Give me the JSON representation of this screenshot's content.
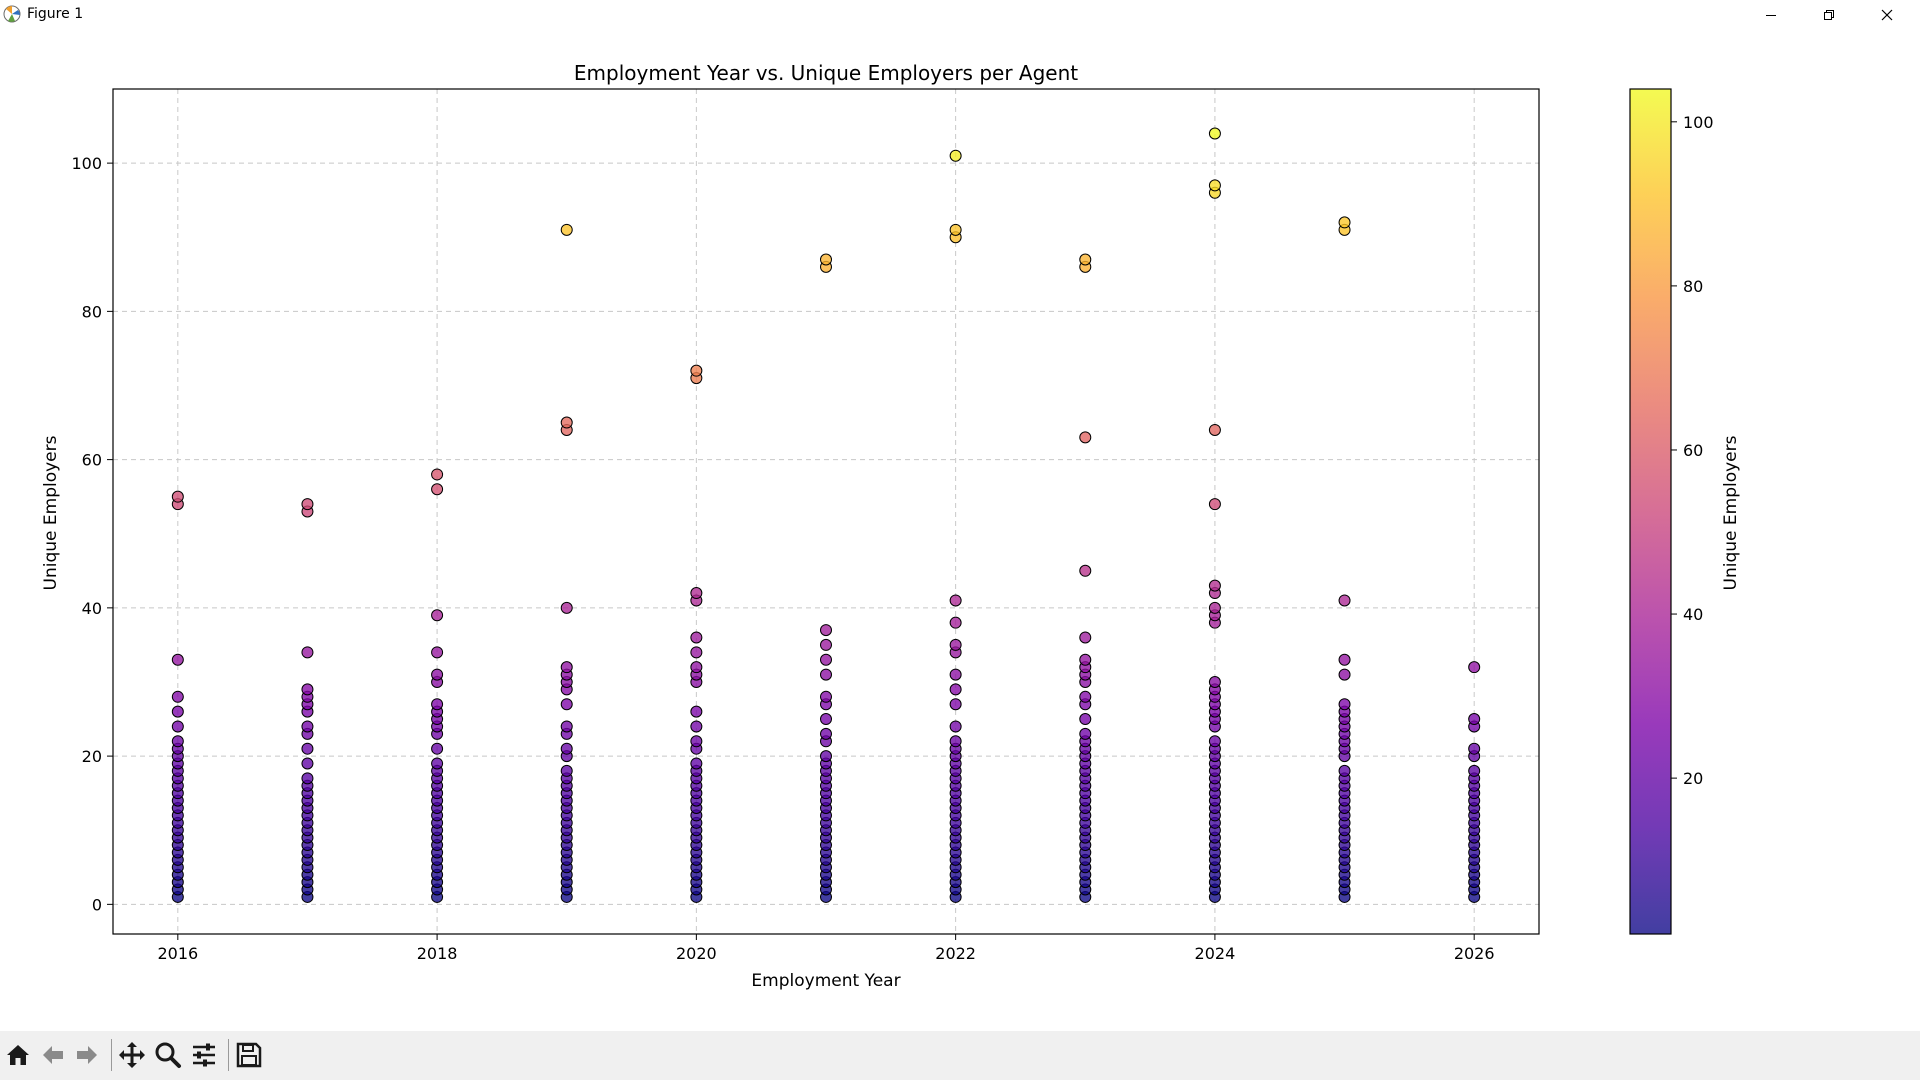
{
  "window": {
    "title": "Figure 1",
    "controls": [
      "minimize",
      "restore",
      "close"
    ]
  },
  "toolbar": {
    "buttons": [
      {
        "name": "home-icon",
        "label": "Home"
      },
      {
        "name": "back-icon",
        "label": "Back"
      },
      {
        "name": "forward-icon",
        "label": "Forward"
      },
      {
        "name": "pan-icon",
        "label": "Pan"
      },
      {
        "name": "zoom-icon",
        "label": "Zoom"
      },
      {
        "name": "configure-subplots-icon",
        "label": "Configure subplots"
      },
      {
        "name": "save-icon",
        "label": "Save"
      }
    ]
  },
  "chart_data": {
    "type": "scatter",
    "title": "Employment Year vs. Unique Employers per Agent",
    "xlabel": "Employment Year",
    "ylabel": "Unique Employers",
    "xlim": [
      2015.5,
      2026.5
    ],
    "ylim": [
      -4,
      110
    ],
    "xticks": [
      2016,
      2018,
      2020,
      2022,
      2024,
      2026
    ],
    "yticks": [
      0,
      20,
      40,
      60,
      80,
      100
    ],
    "grid": true,
    "grid_style": "dashed",
    "colormap": "plasma",
    "colorbar": {
      "label": "Unique Employers",
      "range": [
        1,
        104
      ],
      "ticks": [
        20,
        40,
        60,
        80,
        100
      ]
    },
    "marker_edge_color": "#000000",
    "points": [
      {
        "x": 2016,
        "y": [
          1,
          2,
          3,
          4,
          5,
          6,
          7,
          8,
          9,
          10,
          11,
          12,
          13,
          14,
          15,
          16,
          17,
          18,
          19,
          20,
          21,
          22,
          24,
          26,
          28,
          33,
          54,
          55
        ]
      },
      {
        "x": 2017,
        "y": [
          1,
          2,
          3,
          4,
          5,
          6,
          7,
          8,
          9,
          10,
          11,
          12,
          13,
          14,
          15,
          16,
          17,
          19,
          21,
          23,
          24,
          26,
          27,
          28,
          29,
          34,
          53,
          54
        ]
      },
      {
        "x": 2018,
        "y": [
          1,
          2,
          3,
          4,
          5,
          6,
          7,
          8,
          9,
          10,
          11,
          12,
          13,
          14,
          15,
          16,
          17,
          18,
          19,
          21,
          23,
          24,
          25,
          26,
          27,
          30,
          31,
          34,
          39,
          56,
          58
        ]
      },
      {
        "x": 2019,
        "y": [
          1,
          2,
          3,
          4,
          5,
          6,
          7,
          8,
          9,
          10,
          11,
          12,
          13,
          14,
          15,
          16,
          17,
          18,
          20,
          21,
          23,
          24,
          27,
          29,
          30,
          31,
          32,
          40,
          64,
          65,
          91
        ]
      },
      {
        "x": 2020,
        "y": [
          1,
          2,
          3,
          4,
          5,
          6,
          7,
          8,
          9,
          10,
          11,
          12,
          13,
          14,
          15,
          16,
          17,
          18,
          19,
          21,
          22,
          24,
          26,
          30,
          31,
          32,
          34,
          36,
          41,
          42,
          71,
          72
        ]
      },
      {
        "x": 2021,
        "y": [
          1,
          2,
          3,
          4,
          5,
          6,
          7,
          8,
          9,
          10,
          11,
          12,
          13,
          14,
          15,
          16,
          17,
          18,
          19,
          20,
          22,
          23,
          25,
          27,
          28,
          31,
          33,
          35,
          37,
          86,
          87
        ]
      },
      {
        "x": 2022,
        "y": [
          1,
          2,
          3,
          4,
          5,
          6,
          7,
          8,
          9,
          10,
          11,
          12,
          13,
          14,
          15,
          16,
          17,
          18,
          19,
          20,
          21,
          22,
          24,
          27,
          29,
          31,
          34,
          35,
          38,
          41,
          90,
          91,
          101
        ]
      },
      {
        "x": 2023,
        "y": [
          1,
          2,
          3,
          4,
          5,
          6,
          7,
          8,
          9,
          10,
          11,
          12,
          13,
          14,
          15,
          16,
          17,
          18,
          19,
          20,
          21,
          22,
          23,
          25,
          27,
          28,
          30,
          31,
          32,
          33,
          36,
          45,
          63,
          86,
          87
        ]
      },
      {
        "x": 2024,
        "y": [
          1,
          2,
          3,
          4,
          5,
          6,
          7,
          8,
          9,
          10,
          11,
          12,
          13,
          14,
          15,
          16,
          17,
          18,
          19,
          20,
          21,
          22,
          24,
          25,
          26,
          27,
          28,
          29,
          30,
          38,
          39,
          40,
          42,
          43,
          54,
          64,
          96,
          97,
          104
        ]
      },
      {
        "x": 2025,
        "y": [
          1,
          2,
          3,
          4,
          5,
          6,
          7,
          8,
          9,
          10,
          11,
          12,
          13,
          14,
          15,
          16,
          17,
          18,
          20,
          21,
          22,
          23,
          24,
          25,
          26,
          27,
          31,
          33,
          41,
          91,
          92
        ]
      },
      {
        "x": 2026,
        "y": [
          1,
          2,
          3,
          4,
          5,
          6,
          7,
          8,
          9,
          10,
          11,
          12,
          13,
          14,
          15,
          16,
          17,
          18,
          20,
          21,
          24,
          25,
          32
        ]
      }
    ]
  }
}
